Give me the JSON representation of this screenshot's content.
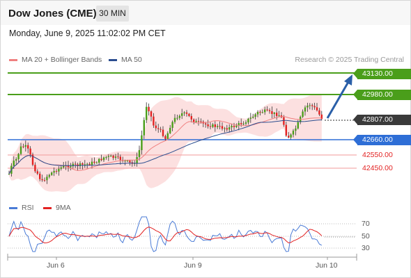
{
  "header": {
    "title": "Dow Jones (CME)",
    "interval": "30 MIN"
  },
  "datetime": "Monday, June 9, 2025 11:02:02 PM CET",
  "legend": {
    "ma20": {
      "label": "MA 20 + Bollinger Bands",
      "color": "#f08080"
    },
    "ma50": {
      "label": "MA 50",
      "color": "#2a4d8f"
    }
  },
  "credit": "Research © 2025 Trading Central",
  "levels": {
    "target2": "43130.00",
    "target1": "42980.00",
    "current": "42807.00",
    "pivot": "42660.00",
    "support1": "42550.00",
    "support2": "42450.00"
  },
  "colors": {
    "up": "#4a9e1a",
    "down": "#e32222",
    "pivot": "#2e6ed6",
    "current": "#3a3a3a",
    "arrow": "#2a5fa8"
  },
  "rsi": {
    "legend_rsi": "RSI",
    "legend_ma": "9MA",
    "levels": [
      "70",
      "50",
      "30"
    ],
    "rsi_color": "#4a7bd6",
    "ma_color": "#e32222"
  },
  "dates": [
    "Jun 6",
    "Jun 9",
    "Jun 10"
  ]
}
